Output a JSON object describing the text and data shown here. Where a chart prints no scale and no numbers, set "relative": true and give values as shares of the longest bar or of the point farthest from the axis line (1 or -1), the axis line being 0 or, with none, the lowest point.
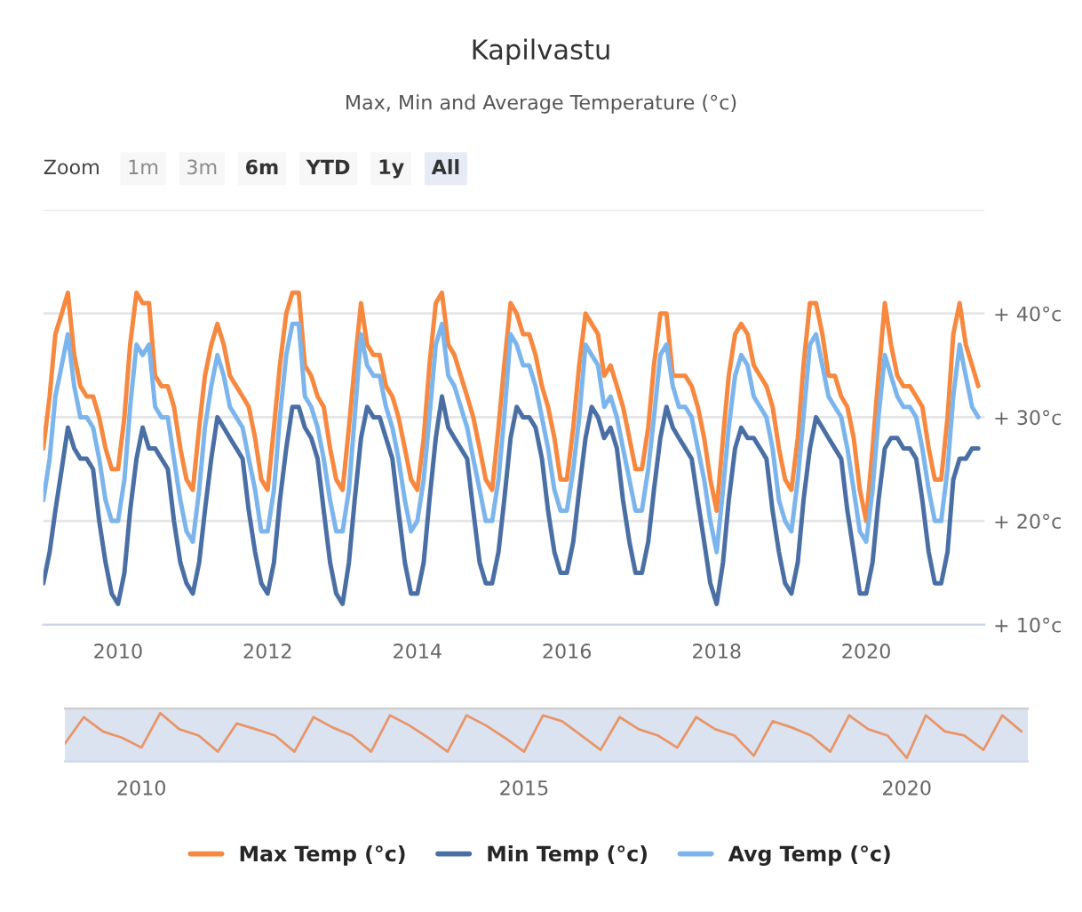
{
  "chart_data": [
    {
      "type": "line",
      "title": "Kapilvastu",
      "subtitle": "Max, Min and Average Temperature (°c)",
      "annotations": [
        "Zoom",
        "1m",
        "3m",
        "6m",
        "YTD",
        "1y",
        "All"
      ],
      "x": [
        "2009-01",
        "2009-02",
        "2009-03",
        "2009-04",
        "2009-05",
        "2009-06",
        "2009-07",
        "2009-08",
        "2009-09",
        "2009-10",
        "2009-11",
        "2009-12",
        "2010-01",
        "2010-02",
        "2010-03",
        "2010-04",
        "2010-05",
        "2010-06",
        "2010-07",
        "2010-08",
        "2010-09",
        "2010-10",
        "2010-11",
        "2010-12",
        "2011-01",
        "2011-02",
        "2011-03",
        "2011-04",
        "2011-05",
        "2011-06",
        "2011-07",
        "2011-08",
        "2011-09",
        "2011-10",
        "2011-11",
        "2011-12",
        "2012-01",
        "2012-02",
        "2012-03",
        "2012-04",
        "2012-05",
        "2012-06",
        "2012-07",
        "2012-08",
        "2012-09",
        "2012-10",
        "2012-11",
        "2012-12",
        "2013-01",
        "2013-02",
        "2013-03",
        "2013-04",
        "2013-05",
        "2013-06",
        "2013-07",
        "2013-08",
        "2013-09",
        "2013-10",
        "2013-11",
        "2013-12",
        "2014-01",
        "2014-02",
        "2014-03",
        "2014-04",
        "2014-05",
        "2014-06",
        "2014-07",
        "2014-08",
        "2014-09",
        "2014-10",
        "2014-11",
        "2014-12",
        "2015-01",
        "2015-02",
        "2015-03",
        "2015-04",
        "2015-05",
        "2015-06",
        "2015-07",
        "2015-08",
        "2015-09",
        "2015-10",
        "2015-11",
        "2015-12",
        "2016-01",
        "2016-02",
        "2016-03",
        "2016-04",
        "2016-05",
        "2016-06",
        "2016-07",
        "2016-08",
        "2016-09",
        "2016-10",
        "2016-11",
        "2016-12",
        "2017-01",
        "2017-02",
        "2017-03",
        "2017-04",
        "2017-05",
        "2017-06",
        "2017-07",
        "2017-08",
        "2017-09",
        "2017-10",
        "2017-11",
        "2017-12",
        "2018-01",
        "2018-02",
        "2018-03",
        "2018-04",
        "2018-05",
        "2018-06",
        "2018-07",
        "2018-08",
        "2018-09",
        "2018-10",
        "2018-11",
        "2018-12",
        "2019-01",
        "2019-02",
        "2019-03",
        "2019-04",
        "2019-05",
        "2019-06",
        "2019-07",
        "2019-08",
        "2019-09",
        "2019-10",
        "2019-11",
        "2019-12",
        "2020-01",
        "2020-02",
        "2020-03",
        "2020-04",
        "2020-05",
        "2020-06",
        "2020-07",
        "2020-08",
        "2020-09",
        "2020-10",
        "2020-11",
        "2020-12",
        "2021-01",
        "2021-02",
        "2021-03",
        "2021-04",
        "2021-05",
        "2021-06",
        "2021-07"
      ],
      "series": [
        {
          "name": "Max Temp (°c)",
          "color": "#f7883f",
          "values": [
            27,
            32,
            38,
            40,
            42,
            36,
            33,
            32,
            32,
            30,
            27,
            25,
            25,
            30,
            37,
            42,
            41,
            41,
            34,
            33,
            33,
            31,
            27,
            24,
            23,
            29,
            34,
            37,
            39,
            37,
            34,
            33,
            32,
            31,
            28,
            24,
            23,
            29,
            35,
            40,
            42,
            42,
            35,
            34,
            32,
            31,
            27,
            24,
            23,
            29,
            35,
            41,
            37,
            36,
            36,
            33,
            32,
            30,
            27,
            24,
            23,
            28,
            35,
            41,
            42,
            37,
            36,
            34,
            32,
            30,
            27,
            24,
            23,
            29,
            35,
            41,
            40,
            38,
            38,
            36,
            33,
            31,
            28,
            24,
            24,
            29,
            35,
            40,
            39,
            38,
            34,
            35,
            33,
            31,
            28,
            25,
            25,
            29,
            35,
            40,
            40,
            34,
            34,
            34,
            33,
            31,
            28,
            24,
            21,
            28,
            34,
            38,
            39,
            38,
            35,
            34,
            33,
            31,
            27,
            24,
            23,
            28,
            35,
            41,
            41,
            38,
            34,
            34,
            32,
            31,
            28,
            23,
            20,
            27,
            34,
            41,
            37,
            34,
            33,
            33,
            32,
            31,
            27,
            24,
            24,
            30,
            38,
            41,
            37,
            35,
            33
          ]
        },
        {
          "name": "Min Temp (°c)",
          "color": "#4a6fa5",
          "values": [
            14,
            17,
            21,
            25,
            29,
            27,
            26,
            26,
            25,
            20,
            16,
            13,
            12,
            15,
            21,
            26,
            29,
            27,
            27,
            26,
            25,
            20,
            16,
            14,
            13,
            16,
            21,
            26,
            30,
            29,
            28,
            27,
            26,
            21,
            17,
            14,
            13,
            16,
            22,
            27,
            31,
            31,
            29,
            28,
            26,
            21,
            16,
            13,
            12,
            16,
            22,
            28,
            31,
            30,
            30,
            28,
            26,
            21,
            16,
            13,
            13,
            16,
            22,
            28,
            32,
            29,
            28,
            27,
            26,
            21,
            16,
            14,
            14,
            17,
            22,
            28,
            31,
            30,
            30,
            29,
            26,
            21,
            17,
            15,
            15,
            18,
            23,
            28,
            31,
            30,
            28,
            29,
            27,
            22,
            18,
            15,
            15,
            18,
            23,
            28,
            31,
            29,
            28,
            27,
            26,
            22,
            18,
            14,
            12,
            16,
            22,
            27,
            29,
            28,
            28,
            27,
            26,
            21,
            17,
            14,
            13,
            16,
            22,
            27,
            30,
            29,
            28,
            27,
            26,
            21,
            17,
            13,
            13,
            16,
            22,
            27,
            28,
            28,
            27,
            27,
            26,
            22,
            17,
            14,
            14,
            17,
            24,
            26,
            26,
            27,
            27
          ]
        },
        {
          "name": "Avg Temp (°c)",
          "color": "#7cb5ec",
          "values": [
            22,
            26,
            32,
            35,
            38,
            33,
            30,
            30,
            29,
            26,
            22,
            20,
            20,
            24,
            31,
            37,
            36,
            37,
            31,
            30,
            30,
            26,
            22,
            19,
            18,
            23,
            29,
            33,
            36,
            34,
            31,
            30,
            29,
            26,
            23,
            19,
            19,
            23,
            30,
            36,
            39,
            39,
            32,
            31,
            29,
            26,
            22,
            19,
            19,
            23,
            30,
            38,
            35,
            34,
            34,
            31,
            29,
            26,
            22,
            19,
            20,
            24,
            30,
            37,
            39,
            34,
            33,
            31,
            29,
            26,
            23,
            20,
            20,
            24,
            30,
            38,
            37,
            35,
            35,
            33,
            30,
            27,
            23,
            21,
            21,
            25,
            30,
            37,
            36,
            35,
            31,
            32,
            30,
            27,
            24,
            21,
            21,
            25,
            30,
            36,
            37,
            33,
            31,
            31,
            30,
            27,
            24,
            20,
            17,
            23,
            29,
            34,
            36,
            35,
            32,
            31,
            30,
            27,
            22,
            20,
            19,
            24,
            30,
            37,
            38,
            35,
            32,
            31,
            30,
            27,
            23,
            19,
            18,
            23,
            30,
            36,
            34,
            32,
            31,
            31,
            30,
            27,
            23,
            20,
            20,
            25,
            32,
            37,
            34,
            31,
            30
          ]
        }
      ],
      "xlim": [
        "2009-01",
        "2021-08"
      ],
      "xticks": [
        "2010",
        "2012",
        "2014",
        "2016",
        "2018",
        "2020"
      ],
      "ylim": [
        10,
        50
      ],
      "yticks": [
        {
          "value": 10,
          "label": "+ 10°c"
        },
        {
          "value": 20,
          "label": "+ 20°c"
        },
        {
          "value": 30,
          "label": "+ 30°c"
        },
        {
          "value": 40,
          "label": "+ 40°c"
        },
        {
          "value": 50,
          "label": null
        }
      ],
      "grid": "y",
      "legend": "bottom"
    },
    {
      "type": "line",
      "relative": true,
      "tick_labels": "x",
      "x": [
        "2009-01",
        "2009-04",
        "2009-07",
        "2009-10",
        "2010-01",
        "2010-04",
        "2010-07",
        "2010-10",
        "2011-01",
        "2011-04",
        "2011-07",
        "2011-10",
        "2012-01",
        "2012-04",
        "2012-07",
        "2012-10",
        "2013-01",
        "2013-04",
        "2013-07",
        "2013-10",
        "2014-01",
        "2014-04",
        "2014-07",
        "2014-10",
        "2015-01",
        "2015-04",
        "2015-07",
        "2015-10",
        "2016-01",
        "2016-04",
        "2016-07",
        "2016-10",
        "2017-01",
        "2017-04",
        "2017-07",
        "2017-10",
        "2018-01",
        "2018-04",
        "2018-07",
        "2018-10",
        "2019-01",
        "2019-04",
        "2019-07",
        "2019-10",
        "2020-01",
        "2020-04",
        "2020-07",
        "2020-10",
        "2021-01",
        "2021-04",
        "2021-07"
      ],
      "series": [
        {
          "color": "#e8956a",
          "values": [
            0.32,
            0.91,
            0.59,
            0.45,
            0.23,
            1,
            0.64,
            0.5,
            0.14,
            0.77,
            0.64,
            0.5,
            0.14,
            0.91,
            0.68,
            0.5,
            0.14,
            0.95,
            0.73,
            0.45,
            0.14,
            0.95,
            0.73,
            0.45,
            0.14,
            0.95,
            0.82,
            0.5,
            0.18,
            0.91,
            0.64,
            0.5,
            0.23,
            0.91,
            0.64,
            0.5,
            0.05,
            0.82,
            0.68,
            0.5,
            0.14,
            0.95,
            0.64,
            0.5,
            0,
            0.95,
            0.59,
            0.5,
            0.18,
            0.95,
            0.59
          ]
        }
      ],
      "xlim": [
        "2009-01",
        "2021-08"
      ],
      "xticks": [
        "2010",
        "2015",
        "2020"
      ]
    }
  ]
}
